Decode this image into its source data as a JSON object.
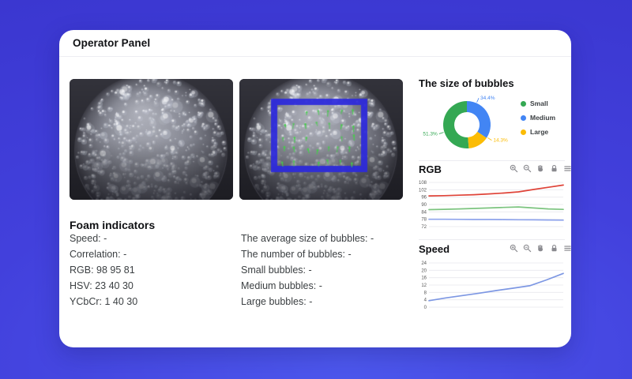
{
  "panel": {
    "title": "Operator Panel"
  },
  "images": {
    "camera_label": "foam-camera-frame",
    "detection_label": "foam-detection-frame",
    "detection_box_color": "#2b28dd",
    "detection_marker_color": "#46cd4b"
  },
  "foam_indicators": {
    "heading": "Foam indicators",
    "items": [
      {
        "label": "Speed:",
        "value": "-"
      },
      {
        "label": "Correlation:",
        "value": "-"
      },
      {
        "label": "RGB:",
        "value": "98 95 81"
      },
      {
        "label": "HSV:",
        "value": "23 40 30"
      },
      {
        "label": "YCbCr:",
        "value": "1 40 30"
      }
    ]
  },
  "bubble_stats": {
    "items": [
      {
        "label": "The average size of bubbles:",
        "value": "-"
      },
      {
        "label": "The number of bubbles:",
        "value": "-"
      },
      {
        "label": "Small bubbles:",
        "value": "-"
      },
      {
        "label": "Medium bubbles:",
        "value": "-"
      },
      {
        "label": "Large bubbles:",
        "value": "-"
      }
    ]
  },
  "chart_toolbar": {
    "icons": [
      "zoom-in",
      "zoom-out",
      "pan",
      "lock",
      "menu"
    ],
    "icon_color": "#8a8a8f"
  },
  "chart_data": [
    {
      "type": "pie",
      "title": "The size of bubbles",
      "donut": true,
      "legend_position": "right",
      "rotation_deg": 175.3,
      "label_format": "percent",
      "slices": [
        {
          "label": "Small",
          "value": 51.3,
          "color": "#34a853",
          "label_angle_deg": 252
        },
        {
          "label": "Medium",
          "value": 34.4,
          "color": "#4285f4",
          "label_angle_deg": 24
        },
        {
          "label": "Large",
          "value": 14.3,
          "color": "#fbbc05",
          "label_angle_deg": 122
        }
      ]
    },
    {
      "type": "line",
      "title": "RGB",
      "ylim": [
        72,
        108
      ],
      "yticks": [
        72,
        78,
        84,
        90,
        96,
        102,
        108
      ],
      "grid": true,
      "legend_position": "none",
      "series": [
        {
          "name": "R",
          "color": "#df4338",
          "values": [
            97,
            97.2,
            97.6,
            98,
            98.6,
            99.3,
            100.3,
            102.2,
            104,
            105.8
          ]
        },
        {
          "name": "G",
          "color": "#7cc47f",
          "values": [
            85.8,
            86.1,
            86.4,
            86.8,
            87.2,
            87.6,
            88,
            87.2,
            86.4,
            86
          ]
        },
        {
          "name": "B",
          "color": "#8fa4ec",
          "values": [
            78,
            78,
            77.9,
            77.8,
            77.8,
            77.7,
            77.6,
            77.5,
            77.4,
            77.3
          ]
        }
      ]
    },
    {
      "type": "line",
      "title": "Speed",
      "ylim": [
        0,
        24
      ],
      "yticks": [
        0,
        4,
        8,
        12,
        16,
        20,
        24
      ],
      "grid": true,
      "legend_position": "none",
      "series": [
        {
          "name": "Speed",
          "color": "#7d97e3",
          "values": [
            3.5,
            5,
            6.3,
            7.6,
            9,
            10.3,
            11.6,
            14.8,
            18.3
          ]
        }
      ]
    }
  ]
}
